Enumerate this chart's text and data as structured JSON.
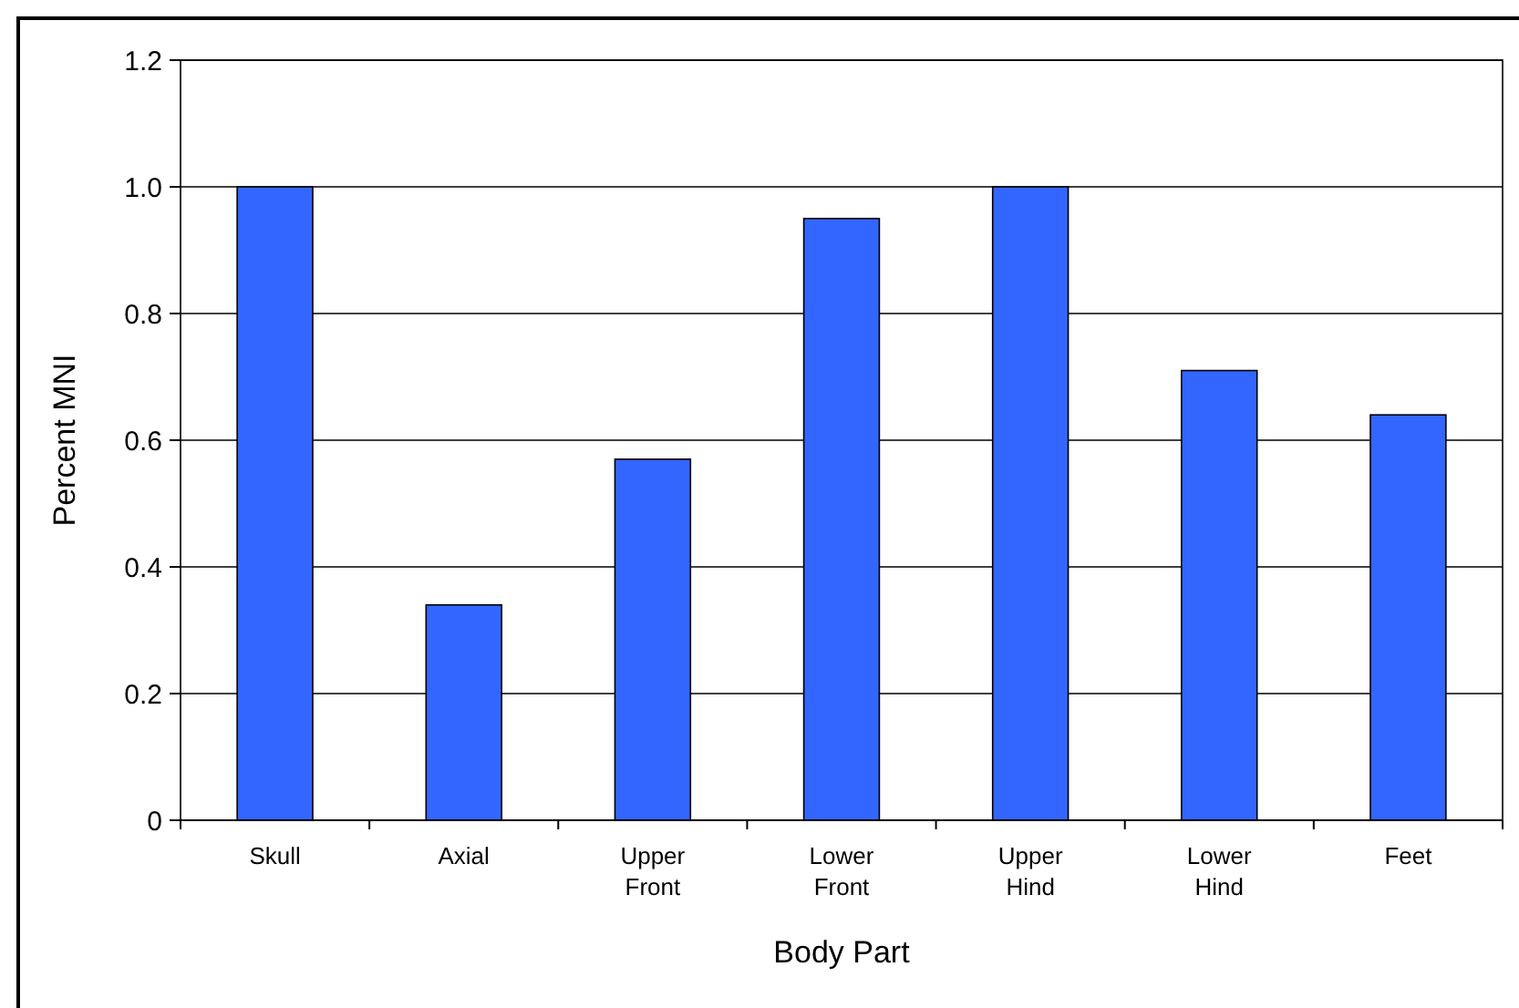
{
  "chart_data": {
    "type": "bar",
    "xlabel": "Body Part",
    "ylabel": "Percent MNI",
    "categories": [
      "Skull",
      "Axial",
      "Upper Front",
      "Lower Front",
      "Upper Hind",
      "Lower Hind",
      "Feet"
    ],
    "values": [
      1.0,
      0.34,
      0.57,
      0.95,
      1.0,
      0.71,
      0.64
    ],
    "color": "#3366ff",
    "ylim": [
      0,
      1.2
    ],
    "yticks": [
      {
        "value": 0,
        "label": "0"
      },
      {
        "value": 0.2,
        "label": "0.2"
      },
      {
        "value": 0.4,
        "label": "0.4"
      },
      {
        "value": 0.6,
        "label": "0.6"
      },
      {
        "value": 0.8,
        "label": "0.8"
      },
      {
        "value": 1.0,
        "label": "1.0"
      },
      {
        "value": 1.2,
        "label": "1.2"
      }
    ],
    "grid": "y"
  }
}
